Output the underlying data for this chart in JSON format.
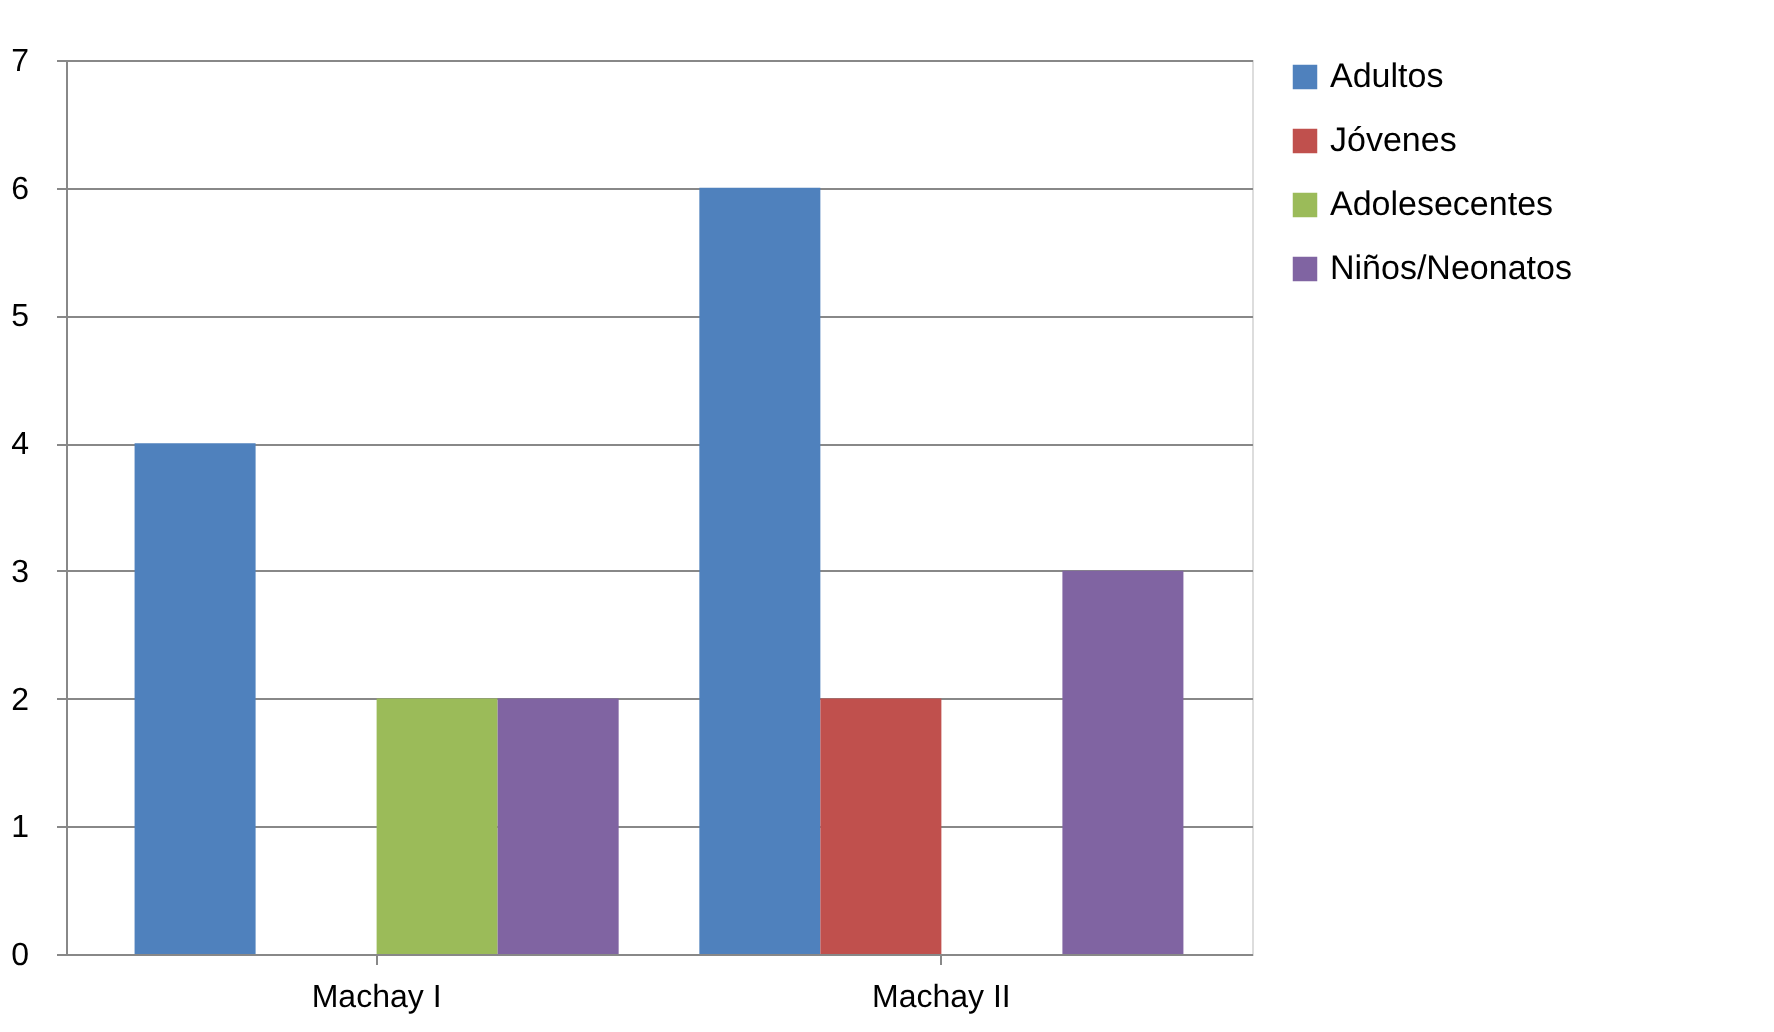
{
  "chart_data": {
    "type": "bar",
    "categories": [
      "Machay I",
      "Machay II"
    ],
    "series": [
      {
        "name": "Adultos",
        "color": "#4f81bd",
        "values": [
          4,
          6
        ]
      },
      {
        "name": "Jóvenes",
        "color": "#c0504d",
        "values": [
          0,
          2
        ]
      },
      {
        "name": "Adolesecentes",
        "color": "#9bbb59",
        "values": [
          2,
          0
        ]
      },
      {
        "name": "Niños/Neonatos",
        "color": "#8064a2",
        "values": [
          2,
          3
        ]
      }
    ],
    "ylim": [
      0,
      7
    ],
    "yticks": [
      0,
      1,
      2,
      3,
      4,
      5,
      6,
      7
    ],
    "grid": "y",
    "legend": "right"
  }
}
